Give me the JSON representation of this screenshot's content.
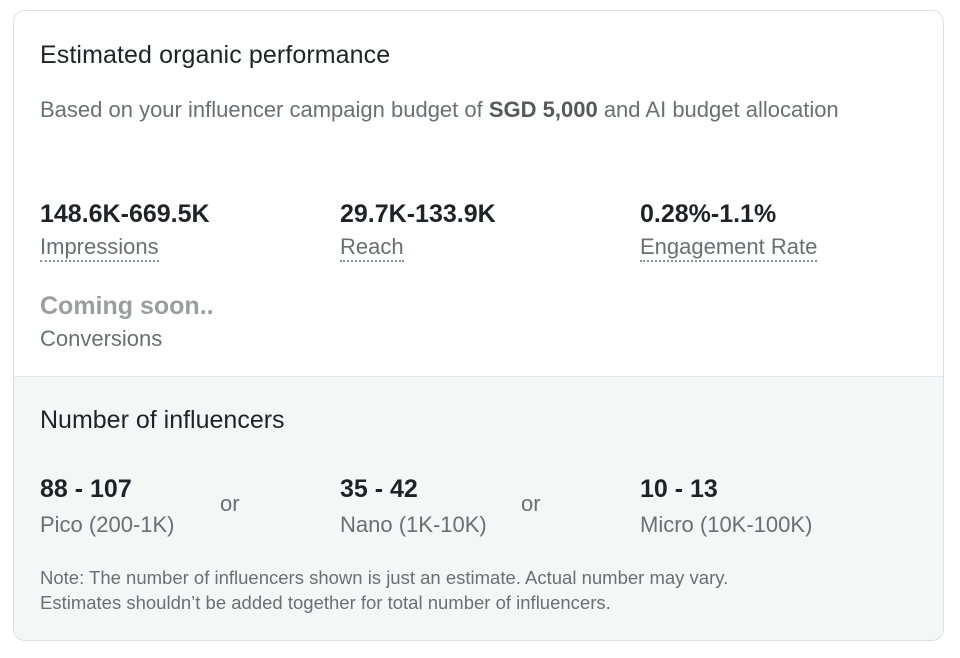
{
  "performance": {
    "title": "Estimated organic performance",
    "desc_prefix": "Based on your influencer campaign budget of ",
    "budget": "SGD 5,000",
    "desc_suffix": " and AI budget allocation",
    "metrics": [
      {
        "value": "148.6K-669.5K",
        "label": "Impressions"
      },
      {
        "value": "29.7K-133.9K",
        "label": "Reach"
      },
      {
        "value": "0.28%-1.1%",
        "label": "Engagement Rate"
      },
      {
        "value": "Coming soon..",
        "label": "Conversions"
      }
    ]
  },
  "influencers": {
    "title": "Number of influencers",
    "or_label": "or",
    "tiers": [
      {
        "value": "88 - 107",
        "label": "Pico (200-1K)"
      },
      {
        "value": "35 - 42",
        "label": "Nano (1K-10K)"
      },
      {
        "value": "10 - 13",
        "label": "Micro (10K-100K)"
      }
    ],
    "note_line1": "Note: The number of influencers shown is just an estimate. Actual number may vary.",
    "note_line2": "Estimates shouldn’t be added together for total number of influencers."
  }
}
